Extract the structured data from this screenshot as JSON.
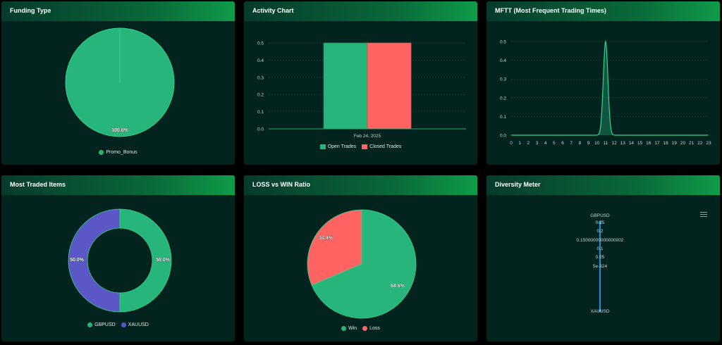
{
  "colors": {
    "green": "#27b57b",
    "red": "#ff6463",
    "purple": "#5b57c7",
    "blue": "#1f8dd6",
    "card_bg": "#03231f",
    "grid": "#1a4a40",
    "axis_text": "#c9d6d1"
  },
  "cards": {
    "funding": {
      "title": "Funding Type",
      "label": "100.0%",
      "legend": [
        "Promo_Bonus"
      ]
    },
    "activity": {
      "title": "Activity Chart",
      "legend": [
        "Open Trades",
        "Closed Trades"
      ]
    },
    "mftt": {
      "title": "MFTT (Most Frequent Trading Times)"
    },
    "traded": {
      "title": "Most Traded Items",
      "labels": [
        "50.0%",
        "50.0%"
      ],
      "legend": [
        "GBPUSD",
        "XAUUSD"
      ]
    },
    "ratio": {
      "title": "LOSS vs WIN Ratio",
      "labels": [
        "68.6%",
        "31.4%"
      ],
      "legend": [
        "Win",
        "Loss"
      ]
    },
    "diversity": {
      "title": "Diversity Meter",
      "menu_icon": "hamburger-menu-icon"
    }
  },
  "chart_data": [
    {
      "type": "pie",
      "title": "Funding Type",
      "categories": [
        "Promo_Bonus"
      ],
      "values": [
        100.0
      ]
    },
    {
      "type": "bar",
      "title": "Activity Chart",
      "categories": [
        "Feb 24, 2025"
      ],
      "series": [
        {
          "name": "Open Trades",
          "values": [
            0.5
          ]
        },
        {
          "name": "Closed Trades",
          "values": [
            0.5
          ]
        }
      ],
      "ylim": [
        0,
        0.5
      ],
      "yticks": [
        "0.0",
        "0.1",
        "0.2",
        "0.3",
        "0.4",
        "0.5"
      ],
      "grid": true,
      "legend": "bottom"
    },
    {
      "type": "area",
      "title": "MFTT (Most Frequent Trading Times)",
      "x": [
        0,
        1,
        2,
        3,
        4,
        5,
        6,
        7,
        8,
        9,
        10,
        11,
        12,
        13,
        14,
        15,
        16,
        17,
        18,
        19,
        20,
        21,
        22,
        23
      ],
      "values": [
        0,
        0,
        0,
        0,
        0,
        0,
        0,
        0,
        0,
        0,
        0,
        0.5,
        0,
        0,
        0,
        0,
        0,
        0,
        0,
        0,
        0,
        0,
        0,
        0
      ],
      "ylim": [
        0,
        0.5
      ],
      "yticks": [
        "0.0",
        "0.1",
        "0.2",
        "0.3",
        "0.4",
        "0.5"
      ],
      "xticks": [
        "0",
        "1",
        "2",
        "3",
        "4",
        "5",
        "6",
        "7",
        "8",
        "9",
        "10",
        "11",
        "12",
        "13",
        "14",
        "15",
        "16",
        "17",
        "18",
        "19",
        "20",
        "21",
        "22",
        "23"
      ],
      "grid": true
    },
    {
      "type": "pie",
      "title": "Most Traded Items",
      "categories": [
        "GBPUSD",
        "XAUUSD"
      ],
      "values": [
        50.0,
        50.0
      ],
      "donut": true
    },
    {
      "type": "pie",
      "title": "LOSS vs WIN Ratio",
      "categories": [
        "Win",
        "Loss"
      ],
      "values": [
        68.6,
        31.4
      ]
    },
    {
      "type": "line",
      "title": "Diversity Meter",
      "categories": [
        "GBPUSD",
        "XAUUSD"
      ],
      "ticks": [
        "0.25",
        "0.2",
        "0.15000000000000002",
        "0.1",
        "0.05",
        "5e-324"
      ],
      "values": [
        0.25,
        0
      ]
    }
  ]
}
